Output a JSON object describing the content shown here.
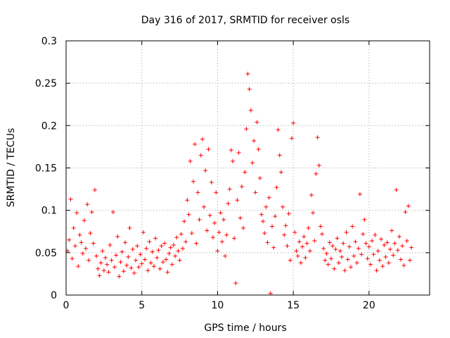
{
  "chart_data": {
    "type": "scatter",
    "title": "Day 316 of 2017, SRMTID for receiver osls",
    "xlabel": "GPS time / hours",
    "ylabel": "SRMTID / TECUs",
    "xlim": [
      0,
      24
    ],
    "ylim": [
      0,
      0.3
    ],
    "xticks": [
      0,
      5,
      10,
      15,
      20
    ],
    "xtick_labels": [
      "0",
      "5",
      "10",
      "15",
      "20"
    ],
    "yticks": [
      0,
      0.05,
      0.1,
      0.15,
      0.2,
      0.25,
      0.3
    ],
    "ytick_labels": [
      "0",
      "0.05",
      "0.1",
      "0.15",
      "0.2",
      "0.25",
      "0.3"
    ],
    "grid": true,
    "marker": "plus",
    "color": "#ff0000",
    "series": [
      {
        "name": "SRMTID",
        "points": [
          [
            0.1,
            0.052
          ],
          [
            0.2,
            0.065
          ],
          [
            0.3,
            0.113
          ],
          [
            0.4,
            0.043
          ],
          [
            0.5,
            0.079
          ],
          [
            0.6,
            0.058
          ],
          [
            0.7,
            0.097
          ],
          [
            0.8,
            0.034
          ],
          [
            0.9,
            0.071
          ],
          [
            1.0,
            0.062
          ],
          [
            1.1,
            0.049
          ],
          [
            1.2,
            0.088
          ],
          [
            1.3,
            0.055
          ],
          [
            1.4,
            0.107
          ],
          [
            1.5,
            0.041
          ],
          [
            1.6,
            0.073
          ],
          [
            1.7,
            0.098
          ],
          [
            1.8,
            0.061
          ],
          [
            1.9,
            0.124
          ],
          [
            2.0,
            0.046
          ],
          [
            2.1,
            0.031
          ],
          [
            2.2,
            0.023
          ],
          [
            2.3,
            0.038
          ],
          [
            2.4,
            0.052
          ],
          [
            2.5,
            0.029
          ],
          [
            2.6,
            0.044
          ],
          [
            2.7,
            0.036
          ],
          [
            2.8,
            0.027
          ],
          [
            2.9,
            0.059
          ],
          [
            3.0,
            0.041
          ],
          [
            3.1,
            0.098
          ],
          [
            3.2,
            0.033
          ],
          [
            3.3,
            0.047
          ],
          [
            3.4,
            0.069
          ],
          [
            3.5,
            0.022
          ],
          [
            3.6,
            0.039
          ],
          [
            3.7,
            0.051
          ],
          [
            3.8,
            0.028
          ],
          [
            3.9,
            0.062
          ],
          [
            4.0,
            0.035
          ],
          [
            4.1,
            0.045
          ],
          [
            4.2,
            0.079
          ],
          [
            4.3,
            0.032
          ],
          [
            4.4,
            0.054
          ],
          [
            4.5,
            0.026
          ],
          [
            4.6,
            0.041
          ],
          [
            4.7,
            0.058
          ],
          [
            4.8,
            0.033
          ],
          [
            4.9,
            0.048
          ],
          [
            5.0,
            0.037
          ],
          [
            5.1,
            0.074
          ],
          [
            5.2,
            0.042
          ],
          [
            5.3,
            0.055
          ],
          [
            5.4,
            0.029
          ],
          [
            5.5,
            0.063
          ],
          [
            5.6,
            0.038
          ],
          [
            5.7,
            0.051
          ],
          [
            5.8,
            0.034
          ],
          [
            5.9,
            0.067
          ],
          [
            6.0,
            0.044
          ],
          [
            6.1,
            0.053
          ],
          [
            6.2,
            0.031
          ],
          [
            6.3,
            0.058
          ],
          [
            6.4,
            0.039
          ],
          [
            6.5,
            0.061
          ],
          [
            6.6,
            0.042
          ],
          [
            6.7,
            0.027
          ],
          [
            6.8,
            0.049
          ],
          [
            6.9,
            0.056
          ],
          [
            7.0,
            0.036
          ],
          [
            7.1,
            0.059
          ],
          [
            7.2,
            0.046
          ],
          [
            7.3,
            0.068
          ],
          [
            7.4,
            0.052
          ],
          [
            7.5,
            0.041
          ],
          [
            7.6,
            0.072
          ],
          [
            7.7,
            0.055
          ],
          [
            7.8,
            0.087
          ],
          [
            7.9,
            0.063
          ],
          [
            8.0,
            0.112
          ],
          [
            8.1,
            0.095
          ],
          [
            8.2,
            0.158
          ],
          [
            8.3,
            0.073
          ],
          [
            8.4,
            0.134
          ],
          [
            8.5,
            0.178
          ],
          [
            8.6,
            0.061
          ],
          [
            8.7,
            0.121
          ],
          [
            8.8,
            0.089
          ],
          [
            8.9,
            0.165
          ],
          [
            9.0,
            0.184
          ],
          [
            9.1,
            0.104
          ],
          [
            9.2,
            0.147
          ],
          [
            9.3,
            0.076
          ],
          [
            9.4,
            0.172
          ],
          [
            9.5,
            0.094
          ],
          [
            9.6,
            0.133
          ],
          [
            9.7,
            0.068
          ],
          [
            9.8,
            0.085
          ],
          [
            9.9,
            0.121
          ],
          [
            10.0,
            0.052
          ],
          [
            10.1,
            0.074
          ],
          [
            10.2,
            0.097
          ],
          [
            10.3,
            0.063
          ],
          [
            10.4,
            0.089
          ],
          [
            10.5,
            0.046
          ],
          [
            10.6,
            0.071
          ],
          [
            10.7,
            0.108
          ],
          [
            10.8,
            0.125
          ],
          [
            10.9,
            0.171
          ],
          [
            11.0,
            0.158
          ],
          [
            11.1,
            0.067
          ],
          [
            11.2,
            0.014
          ],
          [
            11.3,
            0.112
          ],
          [
            11.4,
            0.168
          ],
          [
            11.5,
            0.091
          ],
          [
            11.6,
            0.128
          ],
          [
            11.7,
            0.079
          ],
          [
            11.8,
            0.145
          ],
          [
            11.9,
            0.196
          ],
          [
            12.0,
            0.261
          ],
          [
            12.1,
            0.243
          ],
          [
            12.2,
            0.218
          ],
          [
            12.3,
            0.156
          ],
          [
            12.4,
            0.182
          ],
          [
            12.5,
            0.121
          ],
          [
            12.6,
            0.204
          ],
          [
            12.7,
            0.172
          ],
          [
            12.8,
            0.138
          ],
          [
            12.9,
            0.095
          ],
          [
            13.0,
            0.087
          ],
          [
            13.1,
            0.073
          ],
          [
            13.2,
            0.104
          ],
          [
            13.3,
            0.062
          ],
          [
            13.4,
            0.115
          ],
          [
            13.5,
            0.002
          ],
          [
            13.6,
            0.081
          ],
          [
            13.7,
            0.056
          ],
          [
            13.8,
            0.093
          ],
          [
            13.9,
            0.127
          ],
          [
            14.0,
            0.195
          ],
          [
            14.1,
            0.165
          ],
          [
            14.2,
            0.145
          ],
          [
            14.3,
            0.104
          ],
          [
            14.4,
            0.071
          ],
          [
            14.5,
            0.082
          ],
          [
            14.6,
            0.058
          ],
          [
            14.7,
            0.096
          ],
          [
            14.8,
            0.041
          ],
          [
            14.9,
            0.185
          ],
          [
            15.0,
            0.203
          ],
          [
            15.1,
            0.074
          ],
          [
            15.2,
            0.052
          ],
          [
            15.3,
            0.046
          ],
          [
            15.4,
            0.063
          ],
          [
            15.5,
            0.038
          ],
          [
            15.6,
            0.057
          ],
          [
            15.7,
            0.069
          ],
          [
            15.8,
            0.044
          ],
          [
            15.9,
            0.061
          ],
          [
            16.0,
            0.079
          ],
          [
            16.1,
            0.052
          ],
          [
            16.2,
            0.118
          ],
          [
            16.3,
            0.097
          ],
          [
            16.4,
            0.064
          ],
          [
            16.5,
            0.143
          ],
          [
            16.6,
            0.186
          ],
          [
            16.7,
            0.153
          ],
          [
            16.8,
            0.081
          ],
          [
            16.9,
            0.072
          ],
          [
            17.0,
            0.055
          ],
          [
            17.1,
            0.041
          ],
          [
            17.2,
            0.049
          ],
          [
            17.3,
            0.036
          ],
          [
            17.4,
            0.062
          ],
          [
            17.5,
            0.043
          ],
          [
            17.6,
            0.058
          ],
          [
            17.7,
            0.031
          ],
          [
            17.8,
            0.054
          ],
          [
            17.9,
            0.067
          ],
          [
            18.0,
            0.038
          ],
          [
            18.1,
            0.052
          ],
          [
            18.2,
            0.045
          ],
          [
            18.3,
            0.061
          ],
          [
            18.4,
            0.029
          ],
          [
            18.5,
            0.074
          ],
          [
            18.6,
            0.042
          ],
          [
            18.7,
            0.057
          ],
          [
            18.8,
            0.033
          ],
          [
            18.9,
            0.081
          ],
          [
            19.0,
            0.046
          ],
          [
            19.1,
            0.063
          ],
          [
            19.2,
            0.038
          ],
          [
            19.3,
            0.055
          ],
          [
            19.4,
            0.119
          ],
          [
            19.5,
            0.048
          ],
          [
            19.6,
            0.072
          ],
          [
            19.7,
            0.089
          ],
          [
            19.8,
            0.061
          ],
          [
            19.9,
            0.043
          ],
          [
            20.0,
            0.057
          ],
          [
            20.1,
            0.036
          ],
          [
            20.2,
            0.064
          ],
          [
            20.3,
            0.048
          ],
          [
            20.4,
            0.071
          ],
          [
            20.5,
            0.029
          ],
          [
            20.6,
            0.052
          ],
          [
            20.7,
            0.041
          ],
          [
            20.8,
            0.066
          ],
          [
            20.9,
            0.034
          ],
          [
            21.0,
            0.059
          ],
          [
            21.1,
            0.045
          ],
          [
            21.2,
            0.062
          ],
          [
            21.3,
            0.038
          ],
          [
            21.4,
            0.054
          ],
          [
            21.5,
            0.076
          ],
          [
            21.6,
            0.047
          ],
          [
            21.7,
            0.061
          ],
          [
            21.8,
            0.124
          ],
          [
            21.9,
            0.053
          ],
          [
            22.0,
            0.069
          ],
          [
            22.1,
            0.042
          ],
          [
            22.2,
            0.058
          ],
          [
            22.3,
            0.035
          ],
          [
            22.4,
            0.098
          ],
          [
            22.5,
            0.064
          ],
          [
            22.6,
            0.105
          ],
          [
            22.7,
            0.041
          ],
          [
            22.8,
            0.056
          ]
        ]
      }
    ]
  }
}
